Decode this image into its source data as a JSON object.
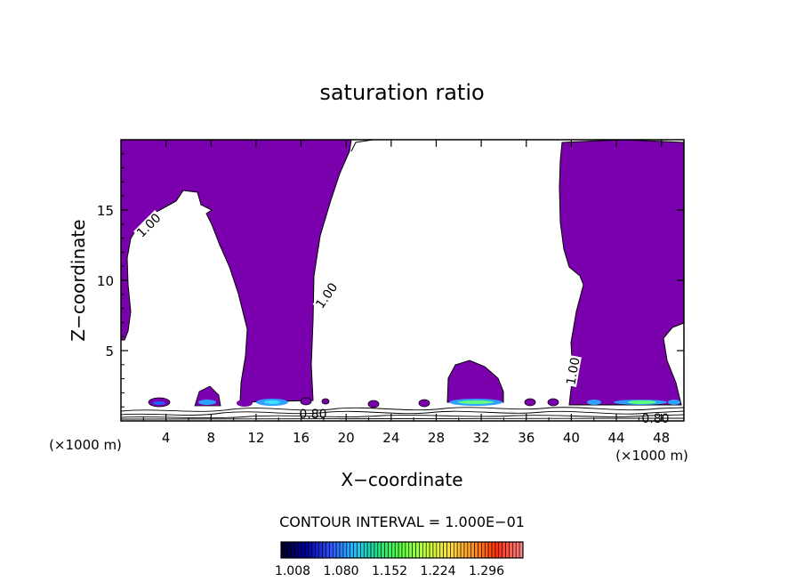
{
  "chart_data": {
    "type": "contour",
    "title": "saturation ratio",
    "xlabel": "X−coordinate",
    "ylabel": "Z−coordinate",
    "x_unit_left": "(×1000 m)",
    "x_unit_right": "(×1000 m)",
    "xlim": [
      0,
      50
    ],
    "ylim": [
      0,
      20
    ],
    "x_ticks": [
      "4",
      "8",
      "12",
      "16",
      "20",
      "24",
      "28",
      "32",
      "36",
      "40",
      "44",
      "48"
    ],
    "y_ticks": [
      "5",
      "10",
      "15"
    ],
    "contour_interval_text": "CONTOUR INTERVAL = 1.000E−01",
    "contour_labels": [
      "1.00",
      "1.00",
      "1.00",
      "0.80",
      "0.80"
    ],
    "colorbar": {
      "tick_labels": [
        "1.008",
        "1.080",
        "1.152",
        "1.224",
        "1.296"
      ],
      "colors": [
        "#000030",
        "#0000a0",
        "#3050ff",
        "#20c0ff",
        "#20e080",
        "#60ff40",
        "#c0ff40",
        "#ffe040",
        "#ff9020",
        "#ff3010",
        "#ff8080"
      ]
    },
    "fill_color": "#7a00ad"
  }
}
